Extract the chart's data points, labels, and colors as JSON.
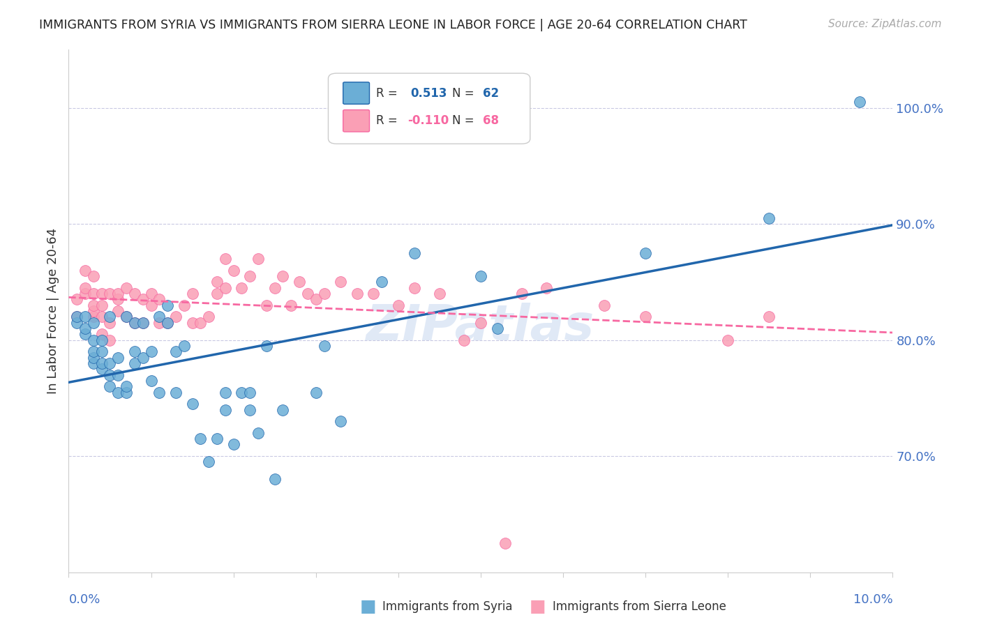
{
  "title": "IMMIGRANTS FROM SYRIA VS IMMIGRANTS FROM SIERRA LEONE IN LABOR FORCE | AGE 20-64 CORRELATION CHART",
  "source": "Source: ZipAtlas.com",
  "ylabel": "In Labor Force | Age 20-64",
  "y_ticks": [
    0.7,
    0.8,
    0.9,
    1.0
  ],
  "y_tick_labels": [
    "70.0%",
    "80.0%",
    "90.0%",
    "100.0%"
  ],
  "x_range": [
    0.0,
    0.1
  ],
  "y_range": [
    0.6,
    1.05
  ],
  "syria_color": "#6baed6",
  "sierra_leone_color": "#fa9fb5",
  "syria_R": 0.513,
  "syria_N": 62,
  "sierra_leone_R": -0.11,
  "sierra_leone_N": 68,
  "syria_line_color": "#2166ac",
  "sierra_leone_line_color": "#f768a1",
  "watermark": "ZIPatlas",
  "syria_x": [
    0.001,
    0.001,
    0.002,
    0.002,
    0.002,
    0.003,
    0.003,
    0.003,
    0.003,
    0.003,
    0.004,
    0.004,
    0.004,
    0.004,
    0.005,
    0.005,
    0.005,
    0.005,
    0.006,
    0.006,
    0.006,
    0.007,
    0.007,
    0.007,
    0.008,
    0.008,
    0.008,
    0.009,
    0.009,
    0.01,
    0.01,
    0.011,
    0.011,
    0.012,
    0.012,
    0.013,
    0.013,
    0.014,
    0.015,
    0.016,
    0.017,
    0.018,
    0.019,
    0.019,
    0.02,
    0.021,
    0.022,
    0.022,
    0.023,
    0.024,
    0.025,
    0.026,
    0.03,
    0.031,
    0.033,
    0.038,
    0.042,
    0.05,
    0.052,
    0.07,
    0.085,
    0.096
  ],
  "syria_y": [
    0.815,
    0.82,
    0.805,
    0.81,
    0.82,
    0.78,
    0.785,
    0.79,
    0.8,
    0.815,
    0.775,
    0.78,
    0.79,
    0.8,
    0.76,
    0.77,
    0.78,
    0.82,
    0.755,
    0.77,
    0.785,
    0.755,
    0.76,
    0.82,
    0.78,
    0.79,
    0.815,
    0.785,
    0.815,
    0.765,
    0.79,
    0.755,
    0.82,
    0.815,
    0.83,
    0.755,
    0.79,
    0.795,
    0.745,
    0.715,
    0.695,
    0.715,
    0.74,
    0.755,
    0.71,
    0.755,
    0.74,
    0.755,
    0.72,
    0.795,
    0.68,
    0.74,
    0.755,
    0.795,
    0.73,
    0.85,
    0.875,
    0.855,
    0.81,
    0.875,
    0.905,
    1.005
  ],
  "sierra_leone_x": [
    0.001,
    0.001,
    0.002,
    0.002,
    0.002,
    0.003,
    0.003,
    0.003,
    0.003,
    0.003,
    0.004,
    0.004,
    0.004,
    0.004,
    0.005,
    0.005,
    0.005,
    0.006,
    0.006,
    0.006,
    0.007,
    0.007,
    0.008,
    0.008,
    0.009,
    0.009,
    0.01,
    0.01,
    0.011,
    0.011,
    0.012,
    0.013,
    0.014,
    0.015,
    0.015,
    0.016,
    0.017,
    0.018,
    0.018,
    0.019,
    0.019,
    0.02,
    0.021,
    0.022,
    0.023,
    0.024,
    0.025,
    0.026,
    0.027,
    0.028,
    0.029,
    0.03,
    0.031,
    0.033,
    0.035,
    0.037,
    0.04,
    0.042,
    0.045,
    0.048,
    0.05,
    0.055,
    0.058,
    0.065,
    0.07,
    0.08,
    0.085,
    0.053
  ],
  "sierra_leone_y": [
    0.82,
    0.835,
    0.84,
    0.845,
    0.86,
    0.82,
    0.825,
    0.83,
    0.84,
    0.855,
    0.805,
    0.82,
    0.83,
    0.84,
    0.8,
    0.815,
    0.84,
    0.825,
    0.835,
    0.84,
    0.82,
    0.845,
    0.815,
    0.84,
    0.815,
    0.835,
    0.83,
    0.84,
    0.815,
    0.835,
    0.815,
    0.82,
    0.83,
    0.815,
    0.84,
    0.815,
    0.82,
    0.84,
    0.85,
    0.845,
    0.87,
    0.86,
    0.845,
    0.855,
    0.87,
    0.83,
    0.845,
    0.855,
    0.83,
    0.85,
    0.84,
    0.835,
    0.84,
    0.85,
    0.84,
    0.84,
    0.83,
    0.845,
    0.84,
    0.8,
    0.815,
    0.84,
    0.845,
    0.83,
    0.82,
    0.8,
    0.82,
    0.625
  ]
}
